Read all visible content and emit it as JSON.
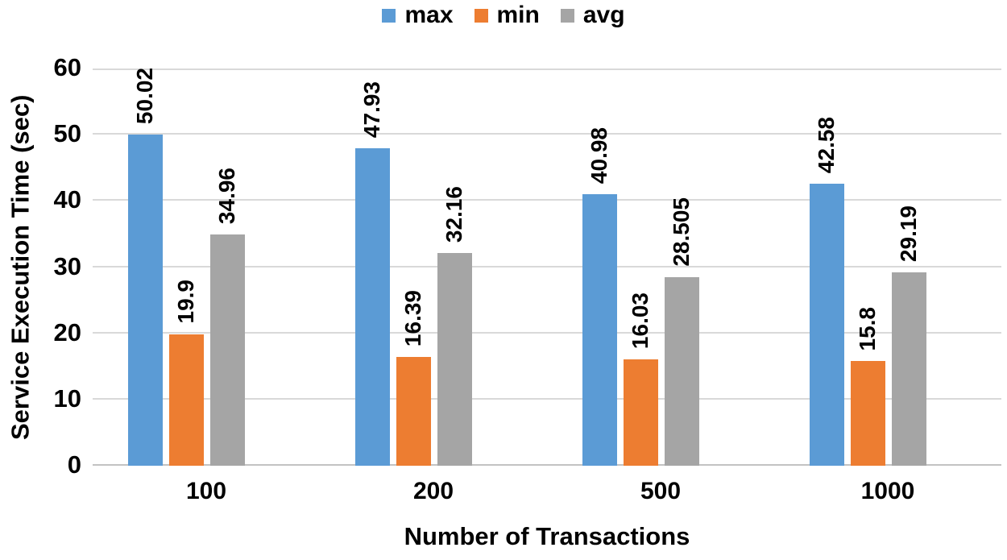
{
  "chart_data": {
    "type": "bar",
    "title": "",
    "categories": [
      "100",
      "200",
      "500",
      "1000"
    ],
    "series": [
      {
        "name": "max",
        "color": "#5B9BD5",
        "values": [
          50.02,
          47.93,
          40.98,
          42.58
        ]
      },
      {
        "name": "min",
        "color": "#ED7D31",
        "values": [
          19.9,
          16.39,
          16.03,
          15.8
        ]
      },
      {
        "name": "avg",
        "color": "#A5A5A5",
        "values": [
          34.96,
          32.16,
          28.505,
          29.19
        ]
      }
    ],
    "xlabel": "Number of Transactions",
    "ylabel": "Service Execution Time (sec)",
    "ylim": [
      0,
      60
    ],
    "yticks": [
      0,
      10,
      20,
      30,
      40,
      50,
      60
    ],
    "grid": "horizontal",
    "legend_position": "top-center",
    "data_labels": "rotated-90-above-bars",
    "colors": {
      "gridline": "#D9D9D9",
      "baseline": "#C3C3C3",
      "text": "#000000",
      "background": "#FFFFFF"
    }
  }
}
